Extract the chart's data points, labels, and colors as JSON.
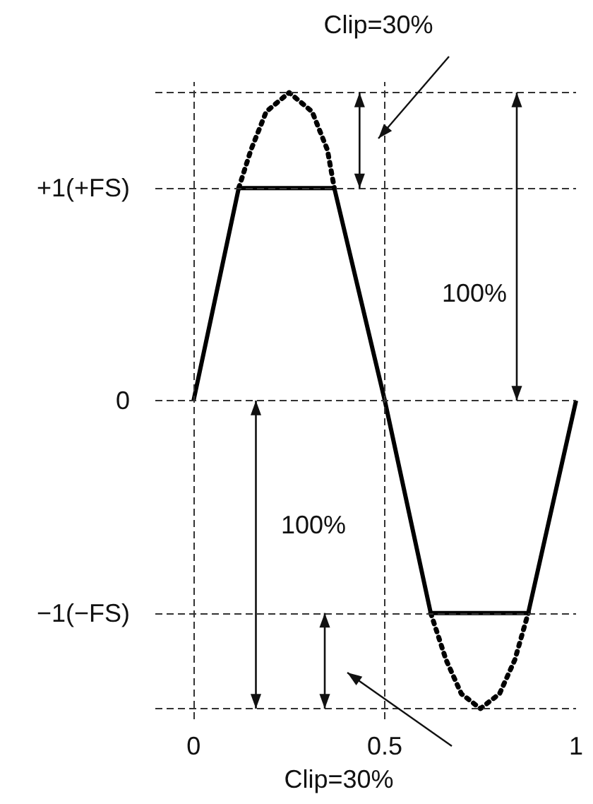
{
  "chart_data": {
    "type": "line",
    "series": [
      {
        "color": "#000000",
        "line_style": "solid",
        "x": [
          0,
          0.118,
          0.368,
          0.5,
          0.62,
          0.875,
          1
        ],
        "values": [
          0,
          1,
          1,
          0,
          -1,
          -1,
          0
        ]
      },
      {
        "color": "#000000",
        "line_style": "dotted",
        "x": [
          0.118,
          0.15,
          0.19,
          0.25,
          0.31,
          0.35,
          0.368,
          0.5,
          0.62,
          0.66,
          0.7,
          0.75,
          0.8,
          0.84,
          0.875
        ],
        "values": [
          1,
          1.18,
          1.36,
          1.45,
          1.36,
          1.18,
          1,
          null,
          -1,
          -1.22,
          -1.38,
          -1.45,
          -1.38,
          -1.22,
          -1
        ]
      }
    ],
    "xlim": [
      -0.1,
      1
    ],
    "xticks": [
      0,
      0.5,
      1
    ],
    "ylim": [
      -1.5,
      1.5
    ],
    "yticks": [
      {
        "value": -1,
        "label": "−1(−FS)"
      },
      0,
      {
        "value": 1,
        "label": "+1(+FS)"
      }
    ],
    "ref_lines": [
      {
        "axis": "y",
        "value": 1.45,
        "line_style": "dashed"
      },
      {
        "axis": "y",
        "value": 1,
        "line_style": "dashed"
      },
      {
        "axis": "y",
        "value": 0,
        "line_style": "dashed"
      },
      {
        "axis": "y",
        "value": -1,
        "line_style": "dashed"
      },
      {
        "axis": "y",
        "value": -1.45,
        "line_style": "dashed"
      },
      {
        "axis": "x",
        "value": 0,
        "line_style": "dashed"
      },
      {
        "axis": "x",
        "value": 0.5,
        "line_style": "dashed"
      }
    ],
    "annotations": [
      "Clip=30%",
      "100%",
      "100%",
      "Clip=30%"
    ],
    "marker": "none",
    "grid": false
  }
}
